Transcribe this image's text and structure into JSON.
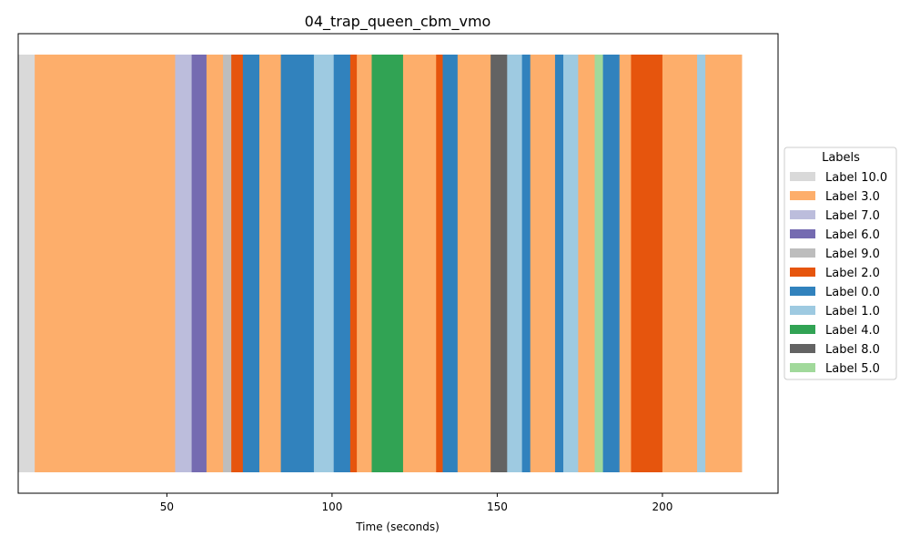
{
  "chart_data": {
    "type": "bar",
    "orientation": "horizontal-segments",
    "title": "04_trap_queen_cbm_vmo",
    "xlabel": "Time (seconds)",
    "ylabel": "",
    "xlim": [
      5,
      235
    ],
    "xticks": [
      50,
      100,
      150,
      200
    ],
    "grid": false,
    "legend": {
      "title": "Labels",
      "placement": "right",
      "entries": [
        {
          "name": "Label 10.0",
          "color": "#d9d9d9"
        },
        {
          "name": "Label 3.0",
          "color": "#fdae6b"
        },
        {
          "name": "Label 7.0",
          "color": "#bcbddc"
        },
        {
          "name": "Label 6.0",
          "color": "#756bb1"
        },
        {
          "name": "Label 9.0",
          "color": "#bdbdbd"
        },
        {
          "name": "Label 2.0",
          "color": "#e6550d"
        },
        {
          "name": "Label 0.0",
          "color": "#3182bd"
        },
        {
          "name": "Label 1.0",
          "color": "#9ecae1"
        },
        {
          "name": "Label 4.0",
          "color": "#31a354"
        },
        {
          "name": "Label 8.0",
          "color": "#636363"
        },
        {
          "name": "Label 5.0",
          "color": "#a1d99b"
        }
      ]
    },
    "segments": [
      {
        "start": 5.0,
        "end": 10.0,
        "label": "Label 10.0"
      },
      {
        "start": 10.0,
        "end": 52.5,
        "label": "Label 3.0"
      },
      {
        "start": 52.5,
        "end": 57.5,
        "label": "Label 7.0"
      },
      {
        "start": 57.5,
        "end": 62.0,
        "label": "Label 6.0"
      },
      {
        "start": 62.0,
        "end": 67.0,
        "label": "Label 3.0"
      },
      {
        "start": 67.0,
        "end": 69.5,
        "label": "Label 9.0"
      },
      {
        "start": 69.5,
        "end": 73.0,
        "label": "Label 2.0"
      },
      {
        "start": 73.0,
        "end": 78.0,
        "label": "Label 0.0"
      },
      {
        "start": 78.0,
        "end": 84.5,
        "label": "Label 3.0"
      },
      {
        "start": 84.5,
        "end": 94.5,
        "label": "Label 0.0"
      },
      {
        "start": 94.5,
        "end": 100.5,
        "label": "Label 1.0"
      },
      {
        "start": 100.5,
        "end": 105.5,
        "label": "Label 0.0"
      },
      {
        "start": 105.5,
        "end": 107.5,
        "label": "Label 2.0"
      },
      {
        "start": 107.5,
        "end": 112.0,
        "label": "Label 3.0"
      },
      {
        "start": 112.0,
        "end": 121.5,
        "label": "Label 4.0"
      },
      {
        "start": 121.5,
        "end": 131.5,
        "label": "Label 3.0"
      },
      {
        "start": 131.5,
        "end": 133.5,
        "label": "Label 2.0"
      },
      {
        "start": 133.5,
        "end": 138.0,
        "label": "Label 0.0"
      },
      {
        "start": 138.0,
        "end": 148.0,
        "label": "Label 3.0"
      },
      {
        "start": 148.0,
        "end": 153.0,
        "label": "Label 8.0"
      },
      {
        "start": 153.0,
        "end": 157.5,
        "label": "Label 1.0"
      },
      {
        "start": 157.5,
        "end": 160.0,
        "label": "Label 0.0"
      },
      {
        "start": 160.0,
        "end": 167.5,
        "label": "Label 3.0"
      },
      {
        "start": 167.5,
        "end": 170.0,
        "label": "Label 0.0"
      },
      {
        "start": 170.0,
        "end": 174.5,
        "label": "Label 1.0"
      },
      {
        "start": 174.5,
        "end": 179.5,
        "label": "Label 3.0"
      },
      {
        "start": 179.5,
        "end": 182.0,
        "label": "Label 5.0"
      },
      {
        "start": 182.0,
        "end": 187.0,
        "label": "Label 0.0"
      },
      {
        "start": 187.0,
        "end": 190.5,
        "label": "Label 3.0"
      },
      {
        "start": 190.5,
        "end": 200.0,
        "label": "Label 2.0"
      },
      {
        "start": 200.0,
        "end": 210.5,
        "label": "Label 3.0"
      },
      {
        "start": 210.5,
        "end": 213.0,
        "label": "Label 1.0"
      },
      {
        "start": 213.0,
        "end": 224.0,
        "label": "Label 3.0"
      }
    ]
  }
}
